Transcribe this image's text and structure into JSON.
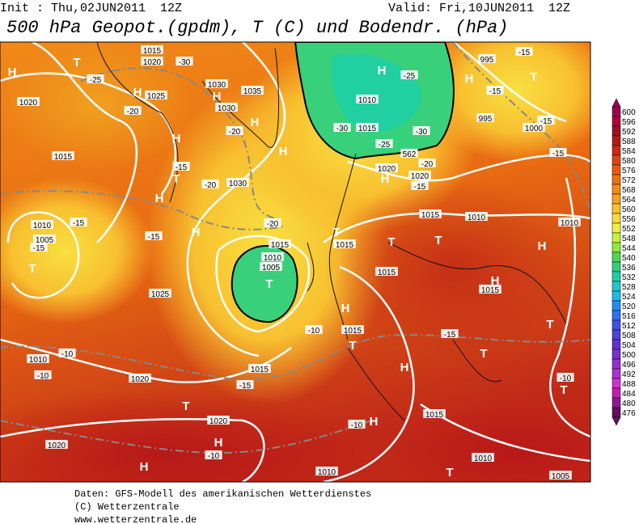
{
  "header": {
    "init": "Init : Thu,02JUN2011  12Z",
    "valid": "Valid: Fri,10JUN2011  12Z",
    "title": "500 hPa Geopot.(gpdm), T (C) und Bodendr. (hPa)"
  },
  "map": {
    "labels": [
      "H",
      "H",
      "H",
      "H",
      "H",
      "H",
      "H",
      "H",
      "H",
      "H",
      "H",
      "H",
      "H",
      "H",
      "H",
      "H",
      "H",
      "H",
      "T",
      "T",
      "T",
      "T",
      "T",
      "T",
      "T",
      "T",
      "T",
      "T",
      "T",
      "T",
      "T",
      "T",
      "1015",
      "1020",
      "1025",
      "1020",
      "1030",
      "1035",
      "1030",
      "1015",
      "1030",
      "1010",
      "1005",
      "1025",
      "1010",
      "1020",
      "1015",
      "1015",
      "1015",
      "1010",
      "1005",
      "1015",
      "1015",
      "1015",
      "1010",
      "1010",
      "1015",
      "1010",
      "1015",
      "1020",
      "1020",
      "995",
      "995",
      "1000",
      "1020",
      "1020",
      "1015",
      "1010",
      "1010",
      "1005",
      "-30",
      "-25",
      "-20",
      "-20",
      "-15",
      "-20",
      "-15",
      "-15",
      "-15",
      "-25",
      "-15",
      "-15",
      "-15",
      "-30",
      "-30",
      "-25",
      "-20",
      "-15",
      "-15",
      "-20",
      "-10",
      "-15",
      "-10",
      "-10",
      "-15",
      "-10",
      "-10",
      "-10",
      "562"
    ]
  },
  "colorbar": {
    "labels": [
      "600",
      "596",
      "592",
      "588",
      "584",
      "580",
      "576",
      "572",
      "568",
      "564",
      "560",
      "556",
      "552",
      "548",
      "544",
      "540",
      "536",
      "532",
      "528",
      "524",
      "520",
      "516",
      "512",
      "508",
      "504",
      "500",
      "496",
      "492",
      "488",
      "484",
      "480",
      "476"
    ],
    "colors": [
      "#9e0050",
      "#b0003a",
      "#a01020",
      "#b81818",
      "#cc2a14",
      "#dc4410",
      "#e85a10",
      "#f07010",
      "#f58a18",
      "#f8a020",
      "#fac030",
      "#fcd838",
      "#f0f040",
      "#c8f040",
      "#90e840",
      "#50d850",
      "#30d080",
      "#20d0a0",
      "#20c8c8",
      "#20b8e8",
      "#2090f0",
      "#3070f0",
      "#4050e8",
      "#5040d8",
      "#6030d0",
      "#7830d0",
      "#9030d0",
      "#b030d0",
      "#d030d0",
      "#c020b0",
      "#901890",
      "#601060"
    ]
  },
  "footer": {
    "lines": [
      "Daten: GFS-Modell des amerikanischen Wetterdienstes",
      "(C) Wetterzentrale",
      "www.wetterzentrale.de"
    ]
  }
}
